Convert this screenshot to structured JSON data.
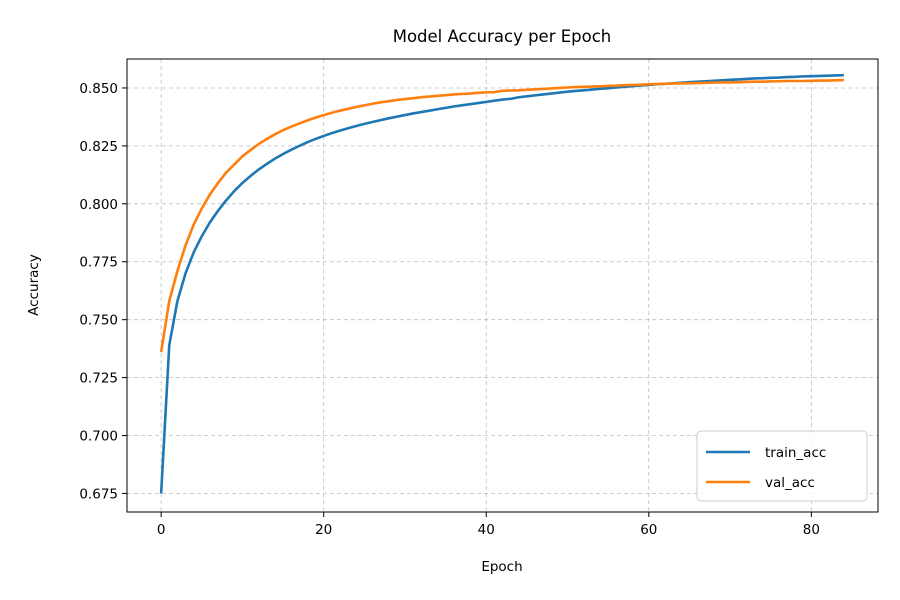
{
  "chart_data": {
    "type": "line",
    "title": "Model Accuracy per Epoch",
    "xlabel": "Epoch",
    "ylabel": "Accuracy",
    "xlim": [
      -4.2,
      88.2
    ],
    "ylim": [
      0.667,
      0.8625
    ],
    "xticks": [
      0,
      20,
      40,
      60,
      80
    ],
    "yticks": [
      0.675,
      0.7,
      0.725,
      0.75,
      0.775,
      0.8,
      0.825,
      0.85
    ],
    "grid": true,
    "legend_position": "lower-right",
    "x": [
      0,
      1,
      2,
      3,
      4,
      5,
      6,
      7,
      8,
      9,
      10,
      11,
      12,
      13,
      14,
      15,
      16,
      17,
      18,
      19,
      20,
      21,
      22,
      23,
      24,
      25,
      26,
      27,
      28,
      29,
      30,
      31,
      32,
      33,
      34,
      35,
      36,
      37,
      38,
      39,
      40,
      41,
      42,
      43,
      44,
      45,
      46,
      47,
      48,
      49,
      50,
      51,
      52,
      53,
      54,
      55,
      56,
      57,
      58,
      59,
      60,
      61,
      62,
      63,
      64,
      65,
      66,
      67,
      68,
      69,
      70,
      71,
      72,
      73,
      74,
      75,
      76,
      77,
      78,
      79,
      80,
      81,
      82,
      83,
      84
    ],
    "series": [
      {
        "name": "train_acc",
        "color": "#1f77b4",
        "values": [
          0.675,
          0.739,
          0.758,
          0.77,
          0.779,
          0.786,
          0.792,
          0.797,
          0.8015,
          0.8055,
          0.809,
          0.812,
          0.8148,
          0.8172,
          0.8195,
          0.8215,
          0.8233,
          0.825,
          0.8266,
          0.828,
          0.8293,
          0.8305,
          0.8316,
          0.8326,
          0.8336,
          0.8345,
          0.8353,
          0.8361,
          0.8369,
          0.8376,
          0.8383,
          0.839,
          0.8396,
          0.8402,
          0.8408,
          0.8414,
          0.842,
          0.8425,
          0.843,
          0.8435,
          0.844,
          0.8445,
          0.845,
          0.8453,
          0.846,
          0.8464,
          0.8468,
          0.8472,
          0.8476,
          0.848,
          0.8484,
          0.8487,
          0.849,
          0.8493,
          0.8496,
          0.8499,
          0.8502,
          0.8505,
          0.8508,
          0.8511,
          0.8513,
          0.8516,
          0.8518,
          0.852,
          0.8523,
          0.8525,
          0.8527,
          0.8529,
          0.8531,
          0.8533,
          0.8535,
          0.8537,
          0.8539,
          0.8541,
          0.8542,
          0.8544,
          0.8545,
          0.8547,
          0.8548,
          0.855,
          0.8551,
          0.8552,
          0.8553,
          0.8554,
          0.8555
        ]
      },
      {
        "name": "val_acc",
        "color": "#ff7f0e",
        "values": [
          0.736,
          0.758,
          0.771,
          0.782,
          0.791,
          0.798,
          0.804,
          0.809,
          0.8135,
          0.817,
          0.8205,
          0.8232,
          0.8258,
          0.828,
          0.83,
          0.8318,
          0.8333,
          0.8347,
          0.836,
          0.8372,
          0.8383,
          0.8393,
          0.8402,
          0.841,
          0.8418,
          0.8425,
          0.8432,
          0.8438,
          0.8443,
          0.8448,
          0.8452,
          0.8456,
          0.846,
          0.8463,
          0.8466,
          0.8469,
          0.8472,
          0.8474,
          0.8476,
          0.8479,
          0.8481,
          0.8482,
          0.8488,
          0.8489,
          0.849,
          0.8492,
          0.8494,
          0.8496,
          0.8498,
          0.85,
          0.8502,
          0.8504,
          0.8505,
          0.8506,
          0.8507,
          0.8509,
          0.851,
          0.8512,
          0.8513,
          0.8514,
          0.8516,
          0.8517,
          0.8518,
          0.8519,
          0.852,
          0.852,
          0.8521,
          0.8522,
          0.8523,
          0.8524,
          0.8524,
          0.8525,
          0.8526,
          0.8527,
          0.8527,
          0.8528,
          0.8529,
          0.853,
          0.853,
          0.853,
          0.8531,
          0.8532,
          0.8532,
          0.8533,
          0.8534
        ]
      }
    ]
  }
}
